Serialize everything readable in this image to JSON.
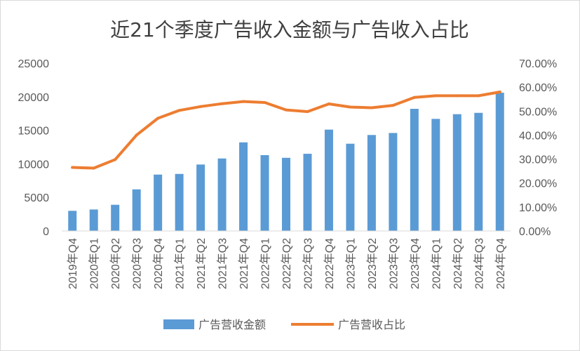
{
  "chart_data": {
    "type": "bar",
    "title": "近21个季度广告收入金额与广告收入占比",
    "categories": [
      "2019年Q4",
      "2020年Q1",
      "2020年Q2",
      "2020年Q3",
      "2020年Q4",
      "2021年Q1",
      "2021年Q2",
      "2021年Q3",
      "2021年Q4",
      "2022年Q1",
      "2022年Q2",
      "2022年Q3",
      "2022年Q4",
      "2023年Q1",
      "2023年Q2",
      "2023年Q3",
      "2023年Q4",
      "2024年Q1",
      "2024年Q2",
      "2024年Q3",
      "2024年Q4"
    ],
    "series": [
      {
        "name": "广告营收金额",
        "type": "bar",
        "axis": "left",
        "color": "#5b9bd5",
        "values": [
          3000,
          3200,
          3900,
          6200,
          8400,
          8500,
          9900,
          10800,
          13200,
          11300,
          10900,
          11500,
          15100,
          13000,
          14300,
          14600,
          18200,
          16700,
          17400,
          17600,
          20600
        ]
      },
      {
        "name": "广告营收占比",
        "type": "line",
        "axis": "right",
        "color": "#ed7d31",
        "values": [
          26.5,
          26.2,
          29.8,
          40.0,
          47.0,
          50.3,
          51.9,
          53.1,
          54.0,
          53.6,
          50.5,
          49.8,
          53.0,
          51.7,
          51.4,
          52.4,
          55.7,
          56.4,
          56.4,
          56.4,
          58.0
        ]
      }
    ],
    "ylim_left": [
      0,
      25000
    ],
    "yticks_left": [
      "0",
      "5000",
      "10000",
      "15000",
      "20000",
      "25000"
    ],
    "ylim_right": [
      0,
      70
    ],
    "yticks_right": [
      "0.00%",
      "10.00%",
      "20.00%",
      "30.00%",
      "40.00%",
      "50.00%",
      "60.00%",
      "70.00%"
    ],
    "legend_position": "bottom",
    "grid": false
  }
}
